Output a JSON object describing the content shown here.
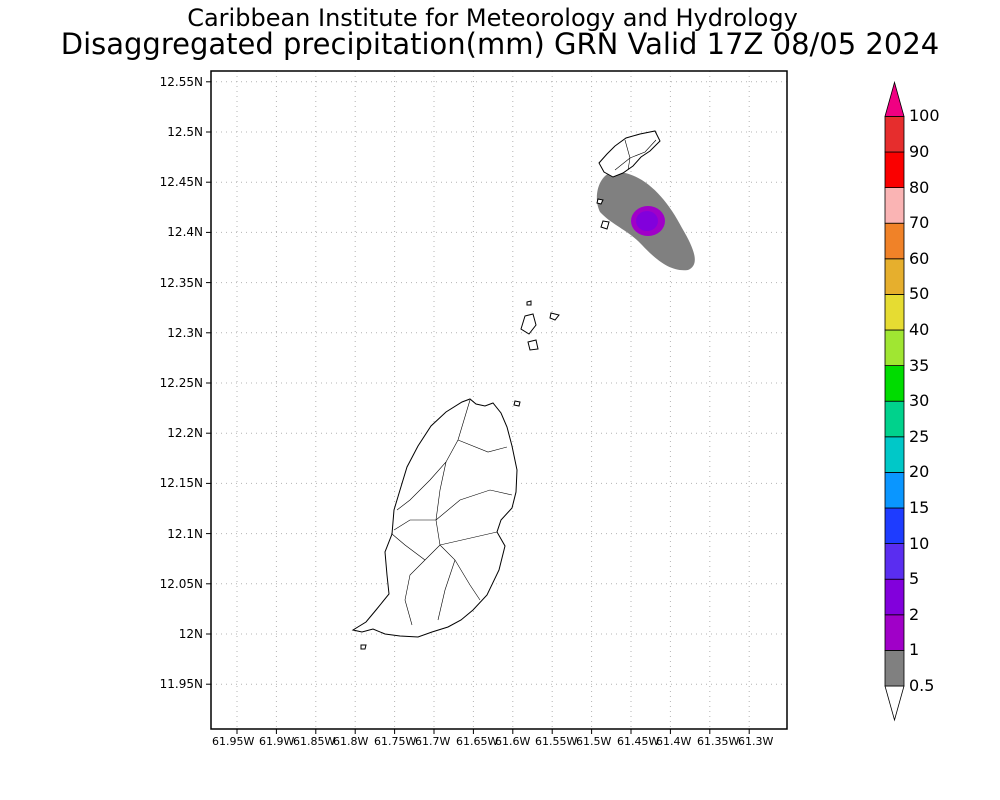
{
  "header": {
    "title_line1": "Caribbean Institute for Meteorology and Hydrology",
    "title_line2": "Disaggregated precipitation(mm) GRN Valid 17Z 08/05 2024"
  },
  "map": {
    "lat_ticks": [
      {
        "value": 12.55,
        "label": "12.55N"
      },
      {
        "value": 12.5,
        "label": "12.5N"
      },
      {
        "value": 12.45,
        "label": "12.45N"
      },
      {
        "value": 12.4,
        "label": "12.4N"
      },
      {
        "value": 12.35,
        "label": "12.35N"
      },
      {
        "value": 12.3,
        "label": "12.3N"
      },
      {
        "value": 12.25,
        "label": "12.25N"
      },
      {
        "value": 12.2,
        "label": "12.2N"
      },
      {
        "value": 12.15,
        "label": "12.15N"
      },
      {
        "value": 12.1,
        "label": "12.1N"
      },
      {
        "value": 12.05,
        "label": "12.05N"
      },
      {
        "value": 12.0,
        "label": "12N"
      },
      {
        "value": 11.95,
        "label": "11.95N"
      }
    ],
    "lon_ticks": [
      {
        "value": -61.95,
        "label": "61.95W"
      },
      {
        "value": -61.9,
        "label": "61.9W"
      },
      {
        "value": -61.85,
        "label": "61.85W"
      },
      {
        "value": -61.8,
        "label": "61.8W"
      },
      {
        "value": -61.75,
        "label": "61.75W"
      },
      {
        "value": -61.7,
        "label": "61.7W"
      },
      {
        "value": -61.65,
        "label": "61.65W"
      },
      {
        "value": -61.6,
        "label": "61.6W"
      },
      {
        "value": -61.55,
        "label": "61.55W"
      },
      {
        "value": -61.5,
        "label": "61.5W"
      },
      {
        "value": -61.45,
        "label": "61.45W"
      },
      {
        "value": -61.4,
        "label": "61.4W"
      },
      {
        "value": -61.35,
        "label": "61.35W"
      },
      {
        "value": -61.3,
        "label": "61.3W"
      }
    ]
  },
  "colorbar": {
    "levels": [
      "0.5",
      "1",
      "2",
      "5",
      "10",
      "15",
      "20",
      "25",
      "30",
      "35",
      "40",
      "50",
      "60",
      "70",
      "80",
      "90",
      "100"
    ],
    "colors": [
      "#808080",
      "#a000c8",
      "#8200dc",
      "#5a2df0",
      "#1e3cff",
      "#0a96ff",
      "#00c8c8",
      "#00d28c",
      "#00dc00",
      "#a0e632",
      "#e6dc32",
      "#e6af2d",
      "#f08228",
      "#fab4b4",
      "#fa0000",
      "#e62d2d",
      "#f00082"
    ],
    "under_color": "#ffffff",
    "over_color": "#f00082"
  },
  "precip_colors": {
    "light": "#808080",
    "peak_outer": "#a000c8",
    "peak_inner": "#8200dc"
  }
}
